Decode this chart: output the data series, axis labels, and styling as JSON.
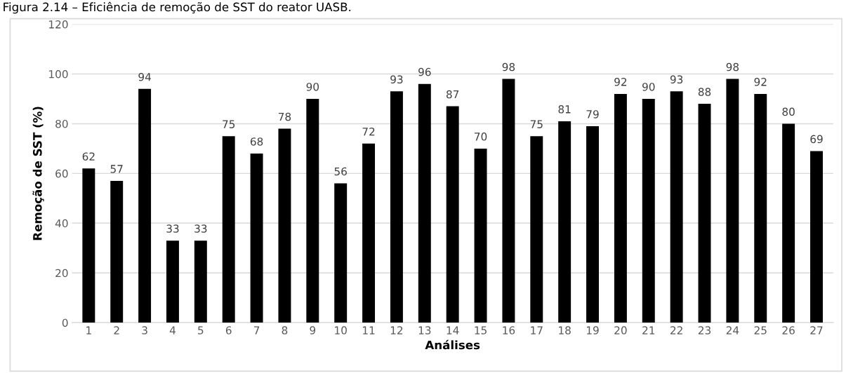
{
  "chart_data": {
    "type": "bar",
    "title": "Figura 2.14 – Eficiência de remoção de SST do reator UASB.",
    "xlabel": "Análises",
    "ylabel": "Remoção de SST (%)",
    "categories": [
      "1",
      "2",
      "3",
      "4",
      "5",
      "6",
      "7",
      "8",
      "9",
      "10",
      "11",
      "12",
      "13",
      "14",
      "15",
      "16",
      "17",
      "18",
      "19",
      "20",
      "21",
      "22",
      "23",
      "24",
      "25",
      "26",
      "27"
    ],
    "values": [
      62,
      57,
      94,
      33,
      33,
      75,
      68,
      78,
      90,
      56,
      72,
      93,
      96,
      87,
      70,
      98,
      75,
      81,
      79,
      92,
      90,
      93,
      88,
      98,
      92,
      80,
      69
    ],
    "color": "#000000",
    "ylim": [
      0,
      120
    ],
    "yticks": [
      0,
      20,
      40,
      60,
      80,
      100,
      120
    ],
    "grid": "y",
    "data_labels": true
  }
}
